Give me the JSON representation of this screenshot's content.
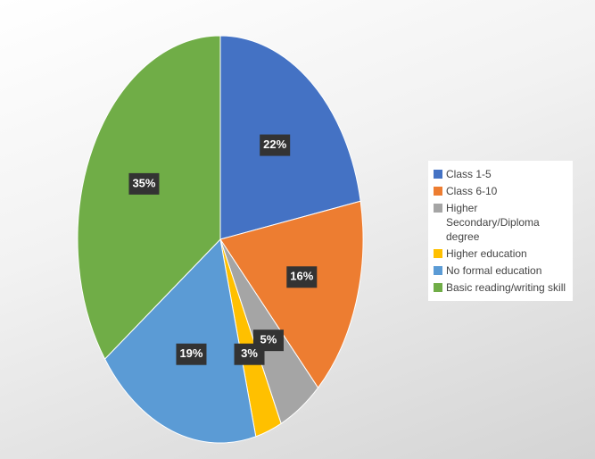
{
  "chart_data": {
    "type": "pie",
    "categories": [
      "Class 1-5",
      "Class 6-10",
      "Higher Secondary/Diploma degree",
      "Higher education",
      "No formal education",
      "Basic reading/writing skill"
    ],
    "values": [
      22,
      16,
      5,
      3,
      19,
      35
    ],
    "value_labels": [
      "22%",
      "16%",
      "5%",
      "3%",
      "19%",
      "35%"
    ],
    "colors": [
      "#4472c4",
      "#ed7d31",
      "#a5a5a5",
      "#ffc000",
      "#5b9bd5",
      "#70ad47"
    ]
  }
}
